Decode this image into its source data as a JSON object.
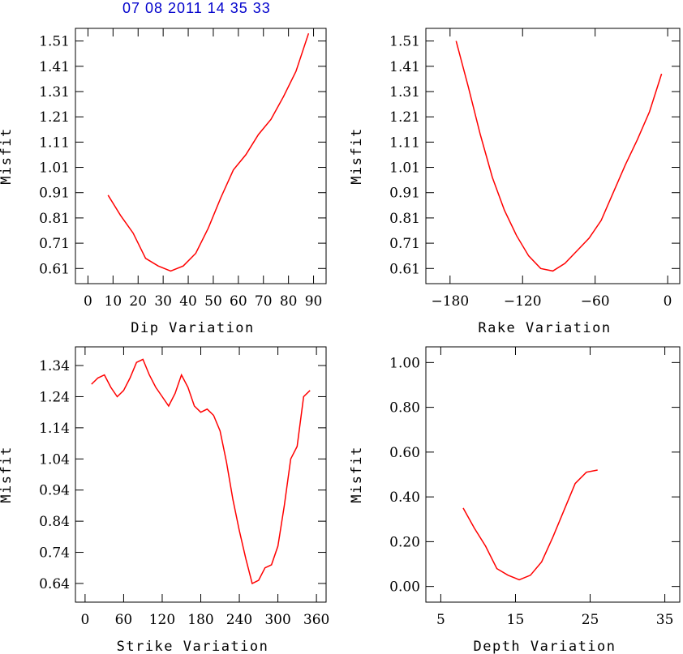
{
  "header": {
    "title": "07 08 2011  14 35 33"
  },
  "colors": {
    "line": "#ff0000",
    "header": "#0000cc"
  },
  "chart_data": [
    {
      "type": "line",
      "title": "",
      "xlabel": "Dip     Variation",
      "ylabel": "Misfit",
      "xlim": [
        -5,
        95
      ],
      "ylim": [
        0.55,
        1.56
      ],
      "xticks": [
        0,
        10,
        20,
        30,
        40,
        50,
        60,
        70,
        80,
        90
      ],
      "xticklabels": [
        "0",
        "10",
        "20",
        "30",
        "40",
        "50",
        "60",
        "70",
        "80",
        "90"
      ],
      "yticks": [
        0.61,
        0.71,
        0.81,
        0.91,
        1.01,
        1.11,
        1.21,
        1.31,
        1.41,
        1.51
      ],
      "yticklabels": [
        "0.61",
        "0.71",
        "0.81",
        "0.91",
        "1.01",
        "1.11",
        "1.21",
        "1.31",
        "1.41",
        "1.51"
      ],
      "series": [
        {
          "name": "misfit",
          "x": [
            8,
            13,
            18,
            23,
            28,
            33,
            38,
            43,
            48,
            53,
            58,
            63,
            68,
            73,
            78,
            83,
            88
          ],
          "y": [
            0.9,
            0.82,
            0.75,
            0.65,
            0.62,
            0.6,
            0.62,
            0.67,
            0.77,
            0.89,
            1.0,
            1.06,
            1.14,
            1.2,
            1.29,
            1.39,
            1.54
          ]
        }
      ]
    },
    {
      "type": "line",
      "title": "",
      "xlabel": "Rake   Variation",
      "ylabel": "Misfit",
      "xlim": [
        -200,
        10
      ],
      "ylim": [
        0.55,
        1.56
      ],
      "xticks": [
        -180,
        -120,
        -60,
        0
      ],
      "xticklabels": [
        "−180",
        "−120",
        "−60",
        "0"
      ],
      "yticks": [
        0.61,
        0.71,
        0.81,
        0.91,
        1.01,
        1.11,
        1.21,
        1.31,
        1.41,
        1.51
      ],
      "yticklabels": [
        "0.61",
        "0.71",
        "0.81",
        "0.91",
        "1.01",
        "1.11",
        "1.21",
        "1.31",
        "1.41",
        "1.51"
      ],
      "series": [
        {
          "name": "misfit",
          "x": [
            -175,
            -165,
            -155,
            -145,
            -135,
            -125,
            -115,
            -105,
            -95,
            -85,
            -75,
            -65,
            -55,
            -45,
            -35,
            -25,
            -15,
            -5
          ],
          "y": [
            1.51,
            1.33,
            1.14,
            0.97,
            0.84,
            0.74,
            0.66,
            0.61,
            0.6,
            0.63,
            0.68,
            0.73,
            0.8,
            0.91,
            1.02,
            1.12,
            1.23,
            1.38
          ]
        }
      ]
    },
    {
      "type": "line",
      "title": "",
      "xlabel": "Strike Variation",
      "ylabel": "Misfit",
      "xlim": [
        -15,
        375
      ],
      "ylim": [
        0.58,
        1.4
      ],
      "xticks": [
        0,
        60,
        120,
        180,
        240,
        300,
        360
      ],
      "xticklabels": [
        "0",
        "60",
        "120",
        "180",
        "240",
        "300",
        "360"
      ],
      "yticks": [
        0.64,
        0.74,
        0.84,
        0.94,
        1.04,
        1.14,
        1.24,
        1.34
      ],
      "yticklabels": [
        "0.64",
        "0.74",
        "0.84",
        "0.94",
        "1.04",
        "1.14",
        "1.24",
        "1.34"
      ],
      "series": [
        {
          "name": "misfit",
          "x": [
            10,
            20,
            30,
            40,
            50,
            60,
            70,
            80,
            90,
            100,
            110,
            120,
            130,
            140,
            150,
            160,
            170,
            180,
            190,
            200,
            210,
            220,
            230,
            240,
            250,
            260,
            270,
            280,
            290,
            300,
            310,
            320,
            330,
            340,
            350
          ],
          "y": [
            1.28,
            1.3,
            1.31,
            1.27,
            1.24,
            1.26,
            1.3,
            1.35,
            1.36,
            1.31,
            1.27,
            1.24,
            1.21,
            1.25,
            1.31,
            1.27,
            1.21,
            1.19,
            1.2,
            1.18,
            1.13,
            1.03,
            0.91,
            0.81,
            0.72,
            0.64,
            0.65,
            0.69,
            0.7,
            0.76,
            0.89,
            1.04,
            1.08,
            1.24,
            1.26
          ]
        }
      ]
    },
    {
      "type": "line",
      "title": "",
      "xlabel": "Depth  Variation",
      "ylabel": "Misfit",
      "xlim": [
        3,
        37
      ],
      "ylim": [
        -0.07,
        1.07
      ],
      "xticks": [
        5,
        15,
        25,
        35
      ],
      "xticklabels": [
        "5",
        "15",
        "25",
        "35"
      ],
      "yticks": [
        0.0,
        0.2,
        0.4,
        0.6,
        0.8,
        1.0
      ],
      "yticklabels": [
        "0.00",
        "0.20",
        "0.40",
        "0.60",
        "0.80",
        "1.00"
      ],
      "series": [
        {
          "name": "misfit",
          "x": [
            8,
            9.5,
            11,
            12.5,
            14,
            15.5,
            17,
            18.5,
            20,
            21.5,
            23,
            24.5,
            26
          ],
          "y": [
            0.35,
            0.26,
            0.18,
            0.08,
            0.05,
            0.03,
            0.05,
            0.11,
            0.22,
            0.34,
            0.46,
            0.51,
            0.52
          ]
        }
      ]
    }
  ]
}
